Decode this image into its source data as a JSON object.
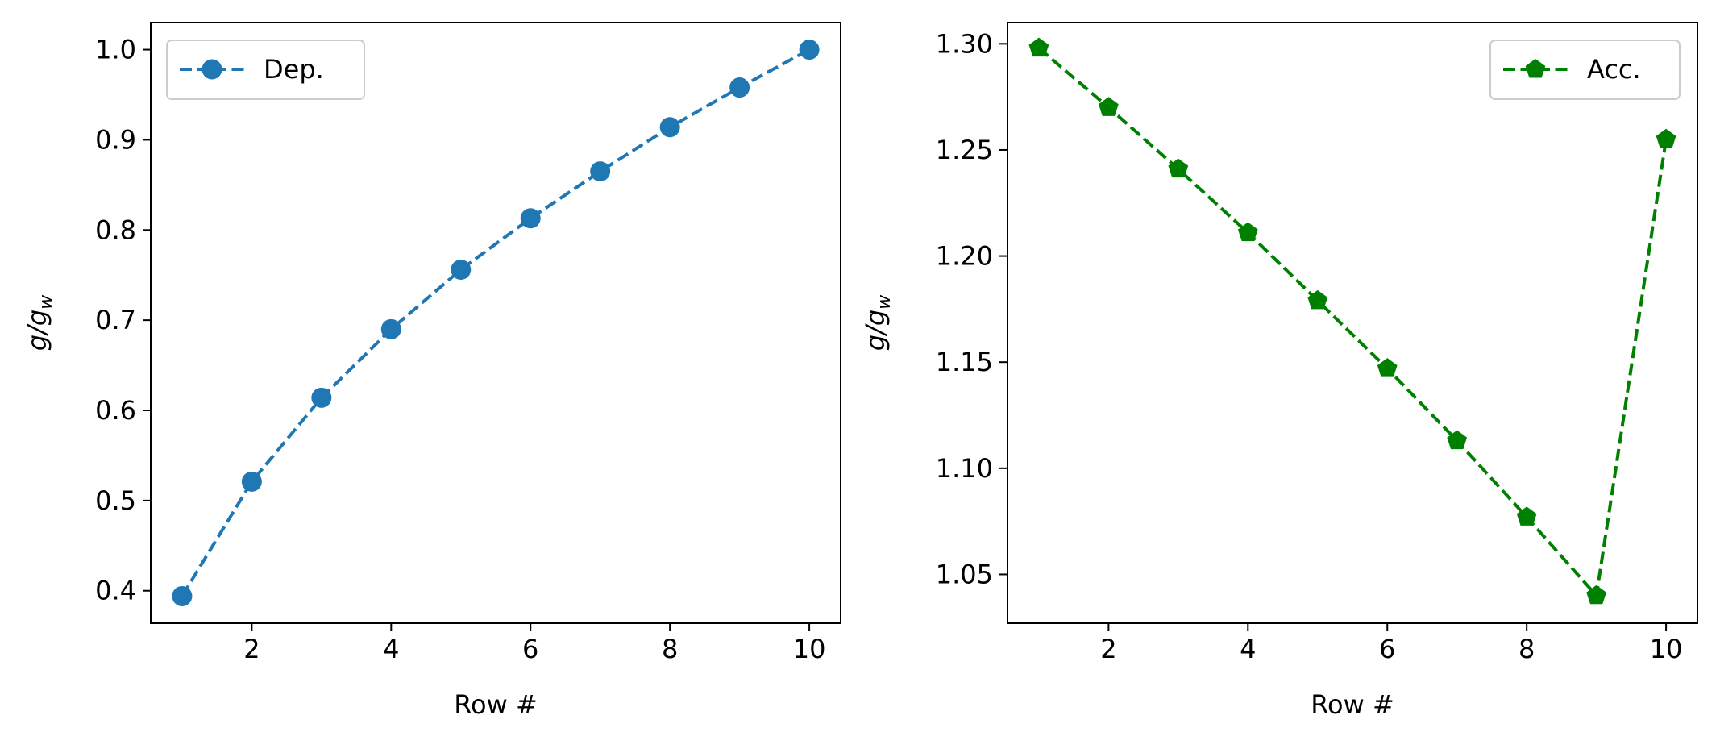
{
  "chart_data": [
    {
      "type": "line",
      "title": "",
      "xlabel": "Row #",
      "ylabel": "g/g",
      "ylabel_sub": "w",
      "xlim": [
        0.55,
        10.45
      ],
      "ylim": [
        0.364,
        1.03
      ],
      "xticks": [
        2,
        4,
        6,
        8,
        10
      ],
      "xtick_labels": [
        "2",
        "4",
        "6",
        "8",
        "10"
      ],
      "yticks": [
        0.4,
        0.5,
        0.6,
        0.7,
        0.8,
        0.9,
        1.0
      ],
      "ytick_labels": [
        "0.4",
        "0.5",
        "0.6",
        "0.7",
        "0.8",
        "0.9",
        "1.0"
      ],
      "grid": false,
      "legend": "top-left",
      "series": [
        {
          "name": "Dep.",
          "color": "#1f77b4",
          "marker": "circle",
          "linestyle": "dashed",
          "x": [
            1,
            2,
            3,
            4,
            5,
            6,
            7,
            8,
            9,
            10
          ],
          "y": [
            0.394,
            0.521,
            0.614,
            0.69,
            0.756,
            0.813,
            0.865,
            0.914,
            0.958,
            1.0
          ]
        }
      ]
    },
    {
      "type": "line",
      "title": "",
      "xlabel": "Row #",
      "ylabel": "g/g",
      "ylabel_sub": "w",
      "xlim": [
        0.55,
        10.45
      ],
      "ylim": [
        1.027,
        1.31
      ],
      "xticks": [
        2,
        4,
        6,
        8,
        10
      ],
      "xtick_labels": [
        "2",
        "4",
        "6",
        "8",
        "10"
      ],
      "yticks": [
        1.05,
        1.1,
        1.15,
        1.2,
        1.25,
        1.3
      ],
      "ytick_labels": [
        "1.05",
        "1.10",
        "1.15",
        "1.20",
        "1.25",
        "1.30"
      ],
      "grid": false,
      "legend": "top-right",
      "series": [
        {
          "name": "Acc.",
          "color": "#008000",
          "marker": "pentagon",
          "linestyle": "dashed",
          "x": [
            1,
            2,
            3,
            4,
            5,
            6,
            7,
            8,
            9,
            10
          ],
          "y": [
            1.298,
            1.27,
            1.241,
            1.211,
            1.179,
            1.147,
            1.113,
            1.077,
            1.04,
            1.255
          ]
        }
      ]
    }
  ]
}
